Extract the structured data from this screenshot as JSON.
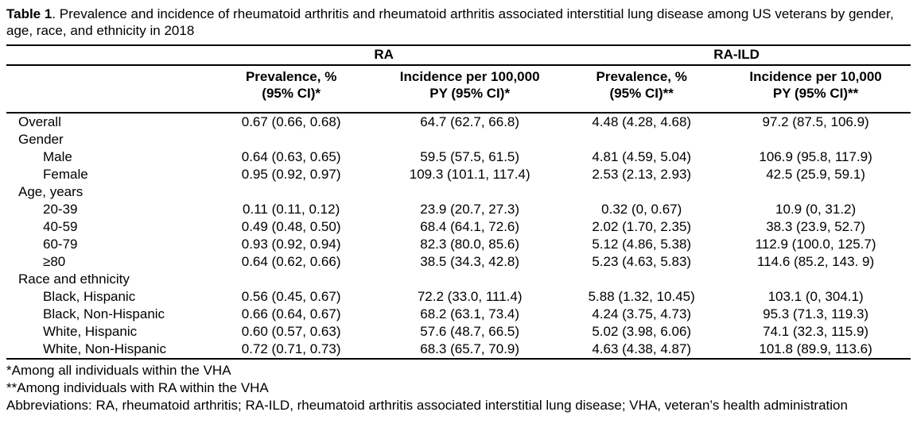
{
  "title": {
    "label": "Table 1",
    "rest": ". Prevalence and incidence of rheumatoid arthritis and rheumatoid arthritis associated interstitial lung disease among US veterans by gender, age, race, and ethnicity in 2018"
  },
  "table": {
    "group_headers": [
      {
        "label": "RA"
      },
      {
        "label": "RA-ILD"
      }
    ],
    "column_headers": [
      "Prevalence, %\n(95% CI)*",
      "Incidence per 100,000\nPY (95% CI)*",
      "Prevalence, %\n(95% CI)**",
      "Incidence per 10,000\nPY (95% CI)**"
    ],
    "rows": [
      {
        "label": "Overall",
        "indent": false,
        "values": [
          "0.67 (0.66, 0.68)",
          "64.7 (62.7, 66.8)",
          "4.48 (4.28, 4.68)",
          "97.2 (87.5, 106.9)"
        ]
      },
      {
        "label": "Gender",
        "indent": false,
        "values": []
      },
      {
        "label": "Male",
        "indent": true,
        "values": [
          "0.64 (0.63, 0.65)",
          "59.5 (57.5, 61.5)",
          "4.81 (4.59, 5.04)",
          "106.9 (95.8, 117.9)"
        ]
      },
      {
        "label": "Female",
        "indent": true,
        "values": [
          "0.95 (0.92, 0.97)",
          "109.3 (101.1, 117.4)",
          "2.53 (2.13, 2.93)",
          "42.5 (25.9, 59.1)"
        ]
      },
      {
        "label": "Age, years",
        "indent": false,
        "values": []
      },
      {
        "label": "20-39",
        "indent": true,
        "values": [
          "0.11 (0.11, 0.12)",
          "23.9 (20.7, 27.3)",
          "0.32 (0, 0.67)",
          "10.9 (0, 31.2)"
        ]
      },
      {
        "label": "40-59",
        "indent": true,
        "values": [
          "0.49 (0.48, 0.50)",
          "68.4 (64.1, 72.6)",
          "2.02 (1.70, 2.35)",
          "38.3 (23.9, 52.7)"
        ]
      },
      {
        "label": "60-79",
        "indent": true,
        "values": [
          "0.93 (0.92, 0.94)",
          "82.3 (80.0, 85.6)",
          "5.12 (4.86, 5.38)",
          "112.9 (100.0, 125.7)"
        ]
      },
      {
        "label": "≥80",
        "indent": true,
        "values": [
          "0.64 (0.62, 0.66)",
          "38.5 (34.3, 42.8)",
          "5.23 (4.63, 5.83)",
          "114.6 (85.2, 143. 9)"
        ]
      },
      {
        "label": "Race and ethnicity",
        "indent": false,
        "values": []
      },
      {
        "label": "Black, Hispanic",
        "indent": true,
        "values": [
          "0.56 (0.45, 0.67)",
          "72.2 (33.0, 111.4)",
          "5.88 (1.32, 10.45)",
          "103.1 (0, 304.1)"
        ]
      },
      {
        "label": "Black, Non-Hispanic",
        "indent": true,
        "values": [
          "0.66 (0.64, 0.67)",
          "68.2 (63.1, 73.4)",
          "4.24 (3.75, 4.73)",
          "95.3 (71.3, 119.3)"
        ]
      },
      {
        "label": "White, Hispanic",
        "indent": true,
        "values": [
          "0.60 (0.57, 0.63)",
          "57.6 (48.7, 66.5)",
          "5.02 (3.98, 6.06)",
          "74.1 (32.3, 115.9)"
        ]
      },
      {
        "label": "White, Non-Hispanic",
        "indent": true,
        "values": [
          "0.72 (0.71, 0.73)",
          "68.3 (65.7, 70.9)",
          "4.63 (4.38, 4.87)",
          "101.8 (89.9, 113.6)"
        ]
      }
    ]
  },
  "footnotes": [
    "*Among all individuals within the VHA",
    "**Among individuals with RA within the VHA",
    "Abbreviations: RA, rheumatoid arthritis; RA-ILD, rheumatoid arthritis associated interstitial lung disease; VHA, veteran’s health administration"
  ]
}
